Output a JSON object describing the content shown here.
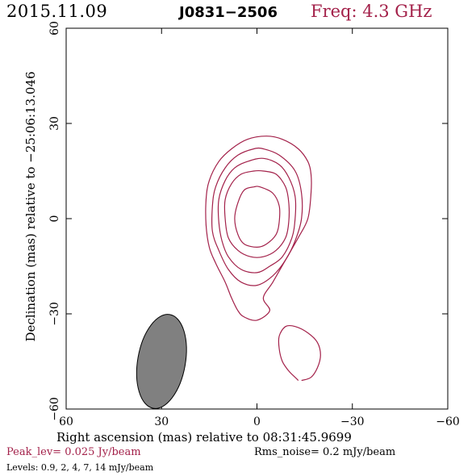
{
  "header": {
    "date": "2015.11.09",
    "source": "J0831−2506",
    "frequency": "Freq: 4.3 GHz"
  },
  "footer": {
    "peak": "Peak_lev=  0.025 Jy/beam",
    "rms": "Rms_noise=   0.2 mJy/beam",
    "levels": "Levels: 0.9,    2,    4,    7,   14 mJy/beam"
  },
  "colors": {
    "contour": "#a3214a",
    "beam_fill": "#808080",
    "accent": "#a3214a"
  },
  "chart_data": {
    "type": "contour",
    "xlabel": "Right ascension (mas) relative to 08:31:45.9699",
    "ylabel": "Declination (mas) relative to −25:06:13.046",
    "xlim": [
      60,
      -60
    ],
    "ylim": [
      -60,
      60
    ],
    "x_ticks": [
      60,
      30,
      0,
      -30,
      -60
    ],
    "x_tick_labels": [
      "60",
      "30",
      "0",
      "−30",
      "−60"
    ],
    "y_ticks": [
      -60,
      -30,
      0,
      30,
      60
    ],
    "y_tick_labels": [
      "−60",
      "−30",
      "0",
      "30",
      "60"
    ],
    "contour_levels_mJy": [
      0.9,
      2,
      4,
      7,
      14
    ],
    "peak_Jy_per_beam": 0.025,
    "rms_mJy_per_beam": 0.2,
    "contours": [
      {
        "level": 0.9,
        "points": [
          [
            -3,
            26
          ],
          [
            -8,
            25
          ],
          [
            -13,
            22
          ],
          [
            -16,
            18
          ],
          [
            -17,
            14
          ],
          [
            -17,
            8
          ],
          [
            -16,
            0
          ],
          [
            -13,
            -6
          ],
          [
            -9,
            -13
          ],
          [
            -5,
            -20
          ],
          [
            -2,
            -25
          ],
          [
            -4,
            -29
          ],
          [
            0,
            -32
          ],
          [
            4,
            -31
          ],
          [
            6,
            -29
          ],
          [
            8,
            -25
          ],
          [
            10,
            -20
          ],
          [
            13,
            -14
          ],
          [
            15,
            -9
          ],
          [
            16,
            -2
          ],
          [
            16,
            6
          ],
          [
            15,
            12
          ],
          [
            12,
            18
          ],
          [
            8,
            22
          ],
          [
            3,
            25
          ]
        ]
      },
      {
        "level": 2,
        "points": [
          [
            -2,
            22
          ],
          [
            -7,
            20
          ],
          [
            -12,
            15
          ],
          [
            -14,
            8
          ],
          [
            -14,
            0
          ],
          [
            -12,
            -7
          ],
          [
            -9,
            -13
          ],
          [
            -5,
            -18
          ],
          [
            0,
            -21
          ],
          [
            5,
            -20
          ],
          [
            9,
            -16
          ],
          [
            12,
            -10
          ],
          [
            14,
            -4
          ],
          [
            14,
            4
          ],
          [
            13,
            10
          ],
          [
            10,
            16
          ],
          [
            6,
            20
          ],
          [
            1,
            22
          ]
        ]
      },
      {
        "level": 4,
        "points": [
          [
            -2,
            19
          ],
          [
            -7,
            17
          ],
          [
            -10,
            13
          ],
          [
            -12,
            7
          ],
          [
            -12,
            0
          ],
          [
            -11,
            -6
          ],
          [
            -8,
            -12
          ],
          [
            -4,
            -15
          ],
          [
            0,
            -17
          ],
          [
            5,
            -16
          ],
          [
            9,
            -12
          ],
          [
            11,
            -7
          ],
          [
            12,
            -1
          ],
          [
            12,
            6
          ],
          [
            10,
            12
          ],
          [
            7,
            16
          ],
          [
            3,
            18
          ]
        ]
      },
      {
        "level": 7,
        "points": [
          [
            -2,
            15
          ],
          [
            -6,
            14
          ],
          [
            -9,
            10
          ],
          [
            -10,
            5
          ],
          [
            -10,
            -1
          ],
          [
            -9,
            -6
          ],
          [
            -6,
            -10
          ],
          [
            -2,
            -12
          ],
          [
            2,
            -12
          ],
          [
            6,
            -10
          ],
          [
            9,
            -6
          ],
          [
            10,
            0
          ],
          [
            10,
            6
          ],
          [
            8,
            11
          ],
          [
            5,
            14
          ],
          [
            1,
            15
          ]
        ]
      },
      {
        "level": 14,
        "points": [
          [
            -1,
            10
          ],
          [
            -5,
            8
          ],
          [
            -7,
            4
          ],
          [
            -7,
            -1
          ],
          [
            -6,
            -5
          ],
          [
            -3,
            -8
          ],
          [
            0,
            -9
          ],
          [
            4,
            -8
          ],
          [
            6,
            -5
          ],
          [
            7,
            0
          ],
          [
            6,
            5
          ],
          [
            4,
            9
          ],
          [
            1,
            10
          ]
        ]
      },
      {
        "level": 0.9,
        "closed": false,
        "points": [
          [
            -14,
            -51
          ],
          [
            -17,
            -50
          ],
          [
            -19,
            -47
          ],
          [
            -20,
            -43
          ],
          [
            -19,
            -39
          ],
          [
            -16,
            -36
          ],
          [
            -12,
            -34
          ],
          [
            -9,
            -34
          ],
          [
            -7,
            -37
          ],
          [
            -7,
            -41
          ],
          [
            -8,
            -45
          ],
          [
            -10,
            -48
          ],
          [
            -12,
            -50
          ],
          [
            -13,
            -51
          ]
        ]
      }
    ],
    "beam": {
      "center": [
        30,
        -45
      ],
      "major_mas": 30,
      "minor_mas": 15,
      "pa_deg": -10
    }
  }
}
